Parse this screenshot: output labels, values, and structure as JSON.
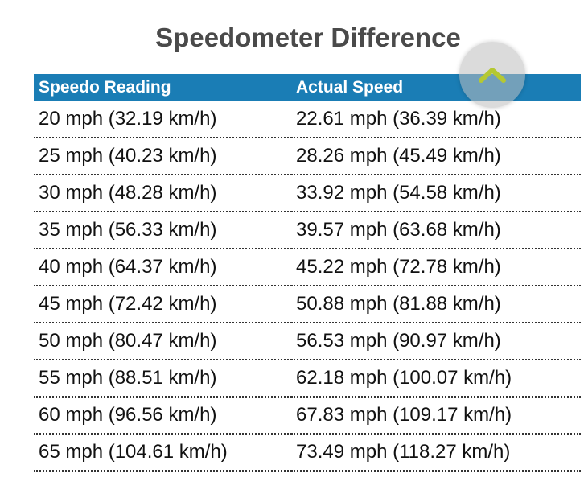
{
  "header": {
    "title": "Speedometer Difference"
  },
  "table": {
    "columns": [
      "Speedo Reading",
      "Actual Speed"
    ],
    "rows": [
      [
        "20 mph (32.19 km/h)",
        "22.61 mph (36.39 km/h)"
      ],
      [
        "25 mph (40.23 km/h)",
        "28.26 mph (45.49 km/h)"
      ],
      [
        "30 mph (48.28 km/h)",
        "33.92 mph (54.58 km/h)"
      ],
      [
        "35 mph (56.33 km/h)",
        "39.57 mph (63.68 km/h)"
      ],
      [
        "40 mph (64.37 km/h)",
        "45.22 mph (72.78 km/h)"
      ],
      [
        "45 mph (72.42 km/h)",
        "50.88 mph (81.88 km/h)"
      ],
      [
        "50 mph (80.47 km/h)",
        "56.53 mph (90.97 km/h)"
      ],
      [
        "55 mph (88.51 km/h)",
        "62.18 mph (100.07 km/h)"
      ],
      [
        "60 mph (96.56 km/h)",
        "67.83 mph (109.17 km/h)"
      ],
      [
        "65 mph (104.61 km/h)",
        "73.49 mph (118.27 km/h)"
      ]
    ]
  }
}
